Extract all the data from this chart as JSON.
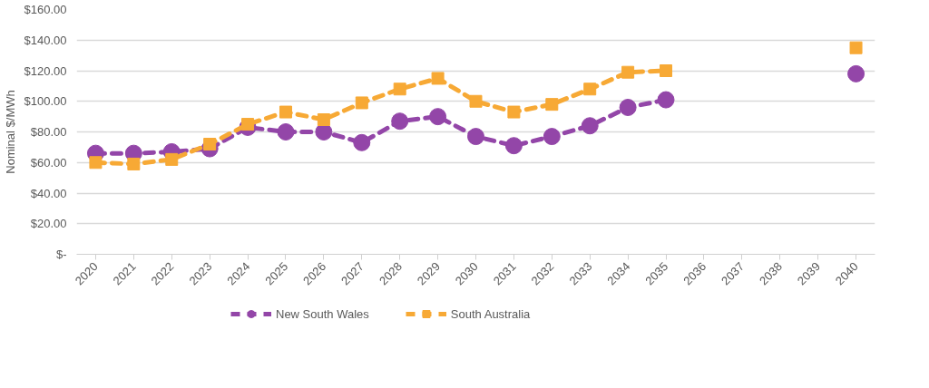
{
  "chart_data": {
    "type": "line",
    "ylabel": "Nominal $/MWh",
    "categories": [
      "2020",
      "2021",
      "2022",
      "2023",
      "2024",
      "2025",
      "2026",
      "2027",
      "2028",
      "2029",
      "2030",
      "2031",
      "2032",
      "2033",
      "2034",
      "2035",
      "2036",
      "2037",
      "2038",
      "2039",
      "2040"
    ],
    "series": [
      {
        "name": "New South Wales",
        "color": "#9346a8",
        "marker": "circle",
        "values": [
          66,
          66,
          67,
          69,
          83,
          80,
          80,
          73,
          87,
          90,
          77,
          71,
          77,
          84,
          96,
          101,
          null,
          null,
          null,
          null,
          118
        ]
      },
      {
        "name": "South Australia",
        "color": "#f7a935",
        "marker": "square",
        "values": [
          60,
          59,
          62,
          72,
          85,
          93,
          88,
          99,
          108,
          115,
          100,
          93,
          98,
          108,
          119,
          120,
          null,
          null,
          null,
          null,
          135
        ]
      }
    ],
    "ylim": [
      0,
      160
    ],
    "yticks": [
      {
        "value": 0,
        "label": "$-"
      },
      {
        "value": 20,
        "label": "$20.00"
      },
      {
        "value": 40,
        "label": "$40.00"
      },
      {
        "value": 60,
        "label": "$60.00"
      },
      {
        "value": 80,
        "label": "$80.00"
      },
      {
        "value": 100,
        "label": "$100.00"
      },
      {
        "value": 120,
        "label": "$120.00"
      },
      {
        "value": 140,
        "label": "$140.00"
      },
      {
        "value": 160,
        "label": "$160.00"
      }
    ],
    "grid": "y",
    "legend": "bottom",
    "line_style": "dashed"
  }
}
